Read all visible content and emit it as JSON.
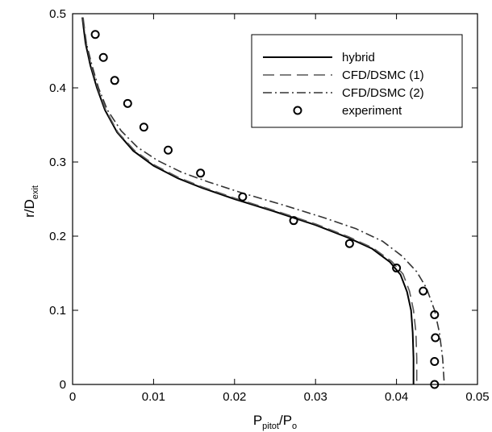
{
  "chart_data": {
    "type": "line",
    "title": "",
    "xlabel": {
      "main": "P",
      "sub1": "pitot",
      "mid": "/P",
      "sub2": "o"
    },
    "ylabel": {
      "main": "r/D",
      "sub": "exit"
    },
    "xlim": [
      0,
      0.05
    ],
    "ylim": [
      0,
      0.5
    ],
    "xticks": [
      0,
      0.01,
      0.02,
      0.03,
      0.04,
      0.05
    ],
    "xtick_labels": [
      "0",
      "0.01",
      "0.02",
      "0.03",
      "0.04",
      "0.05"
    ],
    "yticks": [
      0,
      0.1,
      0.2,
      0.3,
      0.4,
      0.5
    ],
    "ytick_labels": [
      "0",
      "0.1",
      "0.2",
      "0.3",
      "0.4",
      "0.5"
    ],
    "grid": false,
    "legend_position": "top-right",
    "series": [
      {
        "name": "hybrid",
        "style": "solid",
        "marker": "none",
        "color": "#000000",
        "x": [
          0.0012,
          0.0016,
          0.0022,
          0.003,
          0.004,
          0.0055,
          0.0075,
          0.01,
          0.013,
          0.016,
          0.02,
          0.025,
          0.03,
          0.034,
          0.037,
          0.0392,
          0.0405,
          0.0413,
          0.0418,
          0.042,
          0.0421,
          0.0421
        ],
        "y": [
          0.495,
          0.46,
          0.43,
          0.4,
          0.37,
          0.34,
          0.315,
          0.295,
          0.278,
          0.265,
          0.25,
          0.233,
          0.215,
          0.198,
          0.183,
          0.165,
          0.148,
          0.125,
          0.1,
          0.07,
          0.035,
          0
        ]
      },
      {
        "name": "CFD/DSMC (1)",
        "style": "dash",
        "marker": "none",
        "color": "#555555",
        "x": [
          0.0013,
          0.0017,
          0.0023,
          0.0031,
          0.0041,
          0.0056,
          0.0076,
          0.0101,
          0.0131,
          0.0161,
          0.0201,
          0.0251,
          0.0301,
          0.0341,
          0.0371,
          0.0394,
          0.0408,
          0.0416,
          0.0421,
          0.0424,
          0.0425,
          0.0425
        ],
        "y": [
          0.495,
          0.46,
          0.43,
          0.4,
          0.37,
          0.34,
          0.316,
          0.296,
          0.279,
          0.266,
          0.251,
          0.234,
          0.216,
          0.199,
          0.184,
          0.166,
          0.149,
          0.126,
          0.1,
          0.07,
          0.035,
          0
        ]
      },
      {
        "name": "CFD/DSMC (2)",
        "style": "dashdot",
        "marker": "none",
        "color": "#333333",
        "x": [
          0.0012,
          0.0017,
          0.0024,
          0.0032,
          0.0043,
          0.006,
          0.008,
          0.0105,
          0.0135,
          0.0168,
          0.021,
          0.026,
          0.031,
          0.035,
          0.0383,
          0.0407,
          0.0425,
          0.0437,
          0.0447,
          0.0453,
          0.0457,
          0.0459
        ],
        "y": [
          0.495,
          0.46,
          0.43,
          0.4,
          0.37,
          0.342,
          0.32,
          0.302,
          0.286,
          0.273,
          0.258,
          0.242,
          0.225,
          0.21,
          0.193,
          0.173,
          0.152,
          0.13,
          0.1,
          0.07,
          0.035,
          0
        ]
      },
      {
        "name": "experiment",
        "style": "none",
        "marker": "circle",
        "color": "#000000",
        "x": [
          0.0028,
          0.0038,
          0.0052,
          0.0068,
          0.0088,
          0.0118,
          0.0158,
          0.021,
          0.0273,
          0.0342,
          0.04,
          0.0433,
          0.0447,
          0.0448,
          0.0447,
          0.0447
        ],
        "y": [
          0.472,
          0.441,
          0.41,
          0.379,
          0.347,
          0.316,
          0.285,
          0.253,
          0.221,
          0.19,
          0.157,
          0.126,
          0.094,
          0.063,
          0.031,
          0
        ]
      }
    ]
  }
}
